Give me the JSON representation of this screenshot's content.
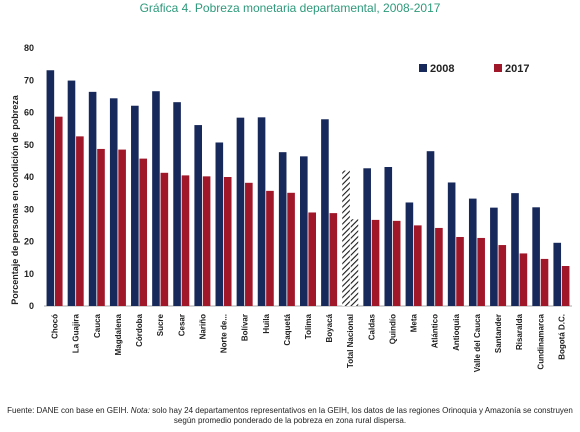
{
  "chart_data": {
    "type": "bar",
    "title": "Gráfica 4. Pobreza monetaria departamental, 2008-2017",
    "ylabel": "Porcentaje de personas en condición de pobreza",
    "xlabel": "",
    "ylim": [
      0,
      80
    ],
    "yticks": [
      0,
      10,
      20,
      30,
      40,
      50,
      60,
      70,
      80
    ],
    "grid": false,
    "legend_position": "top-right",
    "categories": [
      "Chocó",
      "La Guajira",
      "Cauca",
      "Magdalena",
      "Córdoba",
      "Sucre",
      "Cesar",
      "Nariño",
      "Norte de...",
      "Bolívar",
      "Huila",
      "Caquetá",
      "Tolima",
      "Boyacá",
      "Total Nacional",
      "Caldas",
      "Quindío",
      "Meta",
      "Atlántico",
      "Antioquia",
      "Valle del Cauca",
      "Santander",
      "Risaralda",
      "Cundinamarca",
      "Bogotá D.C."
    ],
    "series": [
      {
        "name": "2008",
        "color": "#17285a",
        "values": [
          73.1,
          69.9,
          66.4,
          64.4,
          62.1,
          66.6,
          63.2,
          56.1,
          50.7,
          58.4,
          58.5,
          47.7,
          46.4,
          57.9,
          42.0,
          42.7,
          43.1,
          32.1,
          48.0,
          38.3,
          33.3,
          30.5,
          35.0,
          30.6,
          19.6
        ]
      },
      {
        "name": "2017",
        "color": "#a0172a",
        "values": [
          58.7,
          52.6,
          48.7,
          48.5,
          45.7,
          41.3,
          40.5,
          40.2,
          40.0,
          38.2,
          35.7,
          35.1,
          29.0,
          28.8,
          26.9,
          26.7,
          26.4,
          25.0,
          24.2,
          21.4,
          21.1,
          18.9,
          16.3,
          14.6,
          12.4
        ]
      }
    ],
    "highlight_category": "Total Nacional"
  },
  "source": {
    "prefix": "Fuente: DANE con base en GEIH. ",
    "nota_label": "Nota:",
    "text": " solo hay 24 departamentos representativos en la GEIH, los datos de las regiones Orinoquia y Amazonía se construyen según promedio ponderado de la pobreza en zona rural dispersa."
  }
}
